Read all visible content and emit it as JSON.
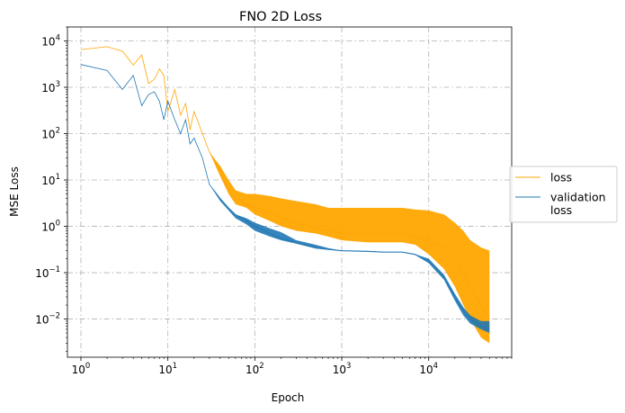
{
  "chart_data": {
    "type": "line",
    "title": "FNO 2D Loss",
    "xlabel": "Epoch",
    "ylabel": "MSE Loss",
    "xscale": "log",
    "yscale": "log",
    "xlim": [
      0.7,
      90000
    ],
    "ylim": [
      0.0015,
      20000
    ],
    "grid": true,
    "legend": "outside right",
    "x_ticks": [
      {
        "value": 1,
        "base": "10",
        "exp": "0"
      },
      {
        "value": 10,
        "base": "10",
        "exp": "1"
      },
      {
        "value": 100,
        "base": "10",
        "exp": "2"
      },
      {
        "value": 1000,
        "base": "10",
        "exp": "3"
      },
      {
        "value": 10000,
        "base": "10",
        "exp": "4"
      }
    ],
    "y_ticks": [
      {
        "value": 0.01,
        "base": "10",
        "exp": "−2"
      },
      {
        "value": 0.1,
        "base": "10",
        "exp": "−1"
      },
      {
        "value": 1,
        "base": "10",
        "exp": "0"
      },
      {
        "value": 10,
        "base": "10",
        "exp": "1"
      },
      {
        "value": 100,
        "base": "10",
        "exp": "2"
      },
      {
        "value": 1000,
        "base": "10",
        "exp": "3"
      },
      {
        "value": 10000,
        "base": "10",
        "exp": "4"
      }
    ],
    "series": [
      {
        "name": "loss",
        "color": "#ffa500",
        "x": [
          1,
          2,
          3,
          4,
          5,
          6,
          7,
          8,
          9,
          10,
          12,
          14,
          16,
          18,
          20,
          25,
          30,
          40,
          50,
          60,
          80,
          100,
          150,
          200,
          300,
          500,
          700,
          1000,
          2000,
          3000,
          5000,
          7000,
          10000,
          15000,
          20000,
          25000,
          30000,
          40000,
          50000
        ],
        "y": [
          6500,
          7500,
          6000,
          3000,
          5000,
          1200,
          1500,
          2500,
          1800,
          300,
          900,
          250,
          450,
          120,
          300,
          100,
          40,
          15,
          6,
          4,
          3,
          2.5,
          2,
          1.5,
          1.2,
          0.9,
          0.8,
          0.7,
          0.7,
          0.7,
          0.7,
          0.6,
          0.5,
          0.35,
          0.2,
          0.1,
          0.05,
          0.02,
          0.01
        ],
        "y_band_high": [
          6500,
          7500,
          6000,
          3000,
          5000,
          1200,
          1500,
          2500,
          1800,
          300,
          900,
          250,
          450,
          120,
          300,
          100,
          40,
          20,
          10,
          6,
          5,
          5,
          4.5,
          4,
          3.5,
          3,
          2.5,
          2.5,
          2.5,
          2.5,
          2.5,
          2.3,
          2.2,
          1.8,
          1.2,
          0.8,
          0.5,
          0.35,
          0.3
        ],
        "y_band_low": [
          6500,
          7500,
          6000,
          3000,
          5000,
          1200,
          1500,
          2500,
          1800,
          300,
          900,
          250,
          450,
          120,
          300,
          100,
          40,
          12,
          5,
          3,
          2.5,
          1.8,
          1.3,
          1.0,
          0.8,
          0.7,
          0.6,
          0.5,
          0.45,
          0.45,
          0.45,
          0.4,
          0.25,
          0.12,
          0.05,
          0.02,
          0.01,
          0.004,
          0.003
        ]
      },
      {
        "name": "validation\nloss",
        "color": "#1f77b4",
        "x": [
          1,
          2,
          3,
          4,
          5,
          6,
          7,
          8,
          9,
          10,
          12,
          14,
          16,
          18,
          20,
          25,
          30,
          40,
          50,
          60,
          80,
          100,
          150,
          200,
          300,
          500,
          700,
          1000,
          2000,
          3000,
          5000,
          7000,
          10000,
          15000,
          20000,
          25000,
          30000,
          40000,
          50000
        ],
        "y": [
          3100,
          2300,
          900,
          1800,
          400,
          700,
          800,
          500,
          200,
          500,
          200,
          100,
          200,
          60,
          80,
          30,
          8,
          4,
          2.5,
          1.8,
          1.3,
          1.0,
          0.7,
          0.55,
          0.45,
          0.35,
          0.32,
          0.3,
          0.29,
          0.28,
          0.28,
          0.25,
          0.18,
          0.08,
          0.03,
          0.015,
          0.01,
          0.007,
          0.006
        ],
        "y_band_high": [
          3100,
          2300,
          900,
          1800,
          400,
          700,
          800,
          500,
          200,
          500,
          200,
          100,
          200,
          60,
          80,
          30,
          8,
          4,
          2.5,
          1.8,
          1.5,
          1.2,
          0.9,
          0.75,
          0.5,
          0.4,
          0.34,
          0.3,
          0.29,
          0.28,
          0.28,
          0.25,
          0.2,
          0.09,
          0.035,
          0.018,
          0.012,
          0.009,
          0.009
        ],
        "y_band_low": [
          3100,
          2300,
          900,
          1800,
          400,
          700,
          800,
          500,
          200,
          500,
          200,
          100,
          200,
          60,
          80,
          30,
          8,
          3.5,
          2.2,
          1.5,
          1.1,
          0.8,
          0.6,
          0.5,
          0.42,
          0.33,
          0.31,
          0.29,
          0.28,
          0.27,
          0.27,
          0.24,
          0.16,
          0.07,
          0.025,
          0.012,
          0.008,
          0.006,
          0.005
        ]
      }
    ]
  }
}
